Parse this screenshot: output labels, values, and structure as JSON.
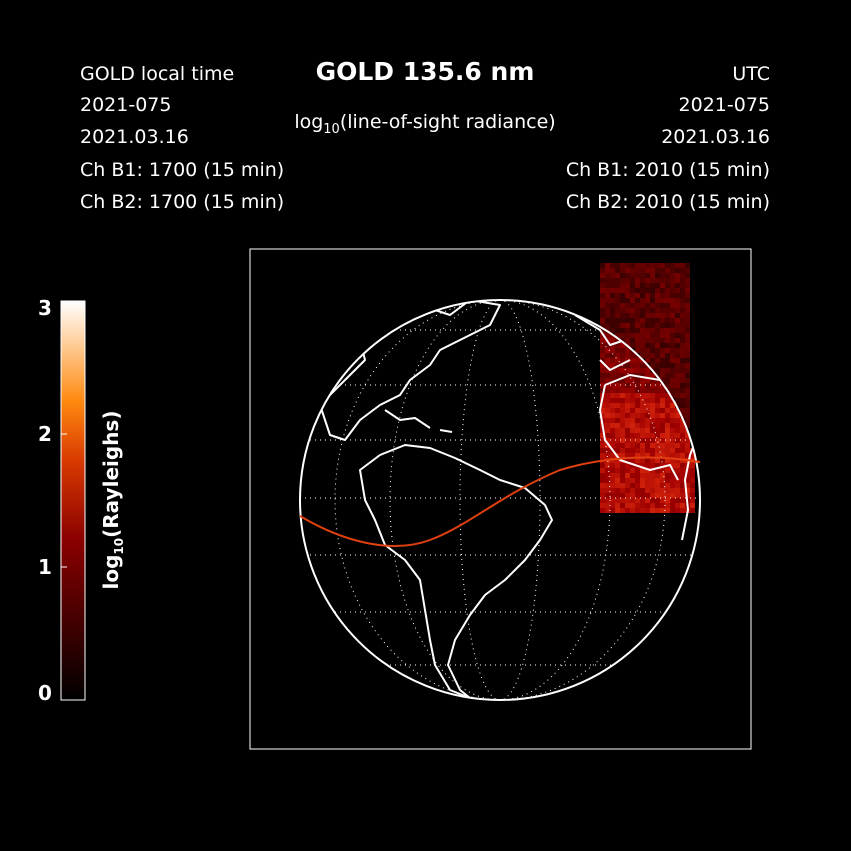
{
  "header": {
    "title": "GOLD 135.6 nm",
    "subtitle": {
      "prefix": "log",
      "sub": "10",
      "rest": "(line-of-sight radiance)"
    },
    "left": [
      "GOLD local time",
      "2021-075",
      "2021.03.16",
      "Ch B1: 1700 (15 min)",
      "Ch B2: 1700 (15 min)"
    ],
    "right": [
      "UTC",
      "2021-075",
      "2021.03.16",
      "Ch B1: 2010 (15 min)",
      "Ch B2: 2010 (15 min)"
    ]
  },
  "colorbar": {
    "label": {
      "prefix": "log",
      "sub": "10",
      "rest": "(Rayleighs)"
    },
    "ylim": [
      0,
      3
    ],
    "yticks": [
      0,
      1,
      2,
      3
    ]
  }
}
